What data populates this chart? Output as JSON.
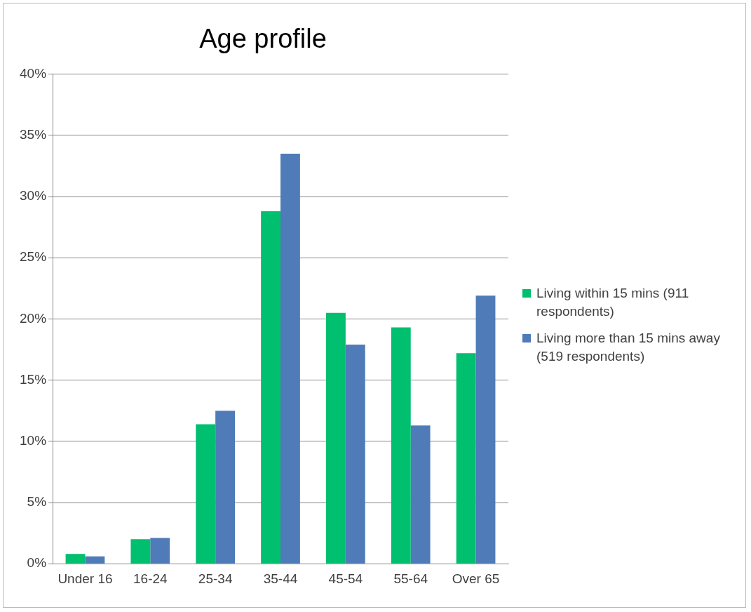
{
  "chart_data": {
    "type": "bar",
    "title": "Age profile",
    "categories": [
      "Under 16",
      "16-24",
      "25-34",
      "35-44",
      "45-54",
      "55-64",
      "Over 65"
    ],
    "series": [
      {
        "name": "Living within 15 mins (911 respondents)",
        "color": "#00bf6f",
        "values": [
          0.8,
          2.0,
          11.4,
          28.8,
          20.5,
          19.3,
          17.2
        ]
      },
      {
        "name": "Living more than 15 mins away (519 respondents)",
        "color": "#4f7bb8",
        "values": [
          0.6,
          2.1,
          12.5,
          33.5,
          17.9,
          11.3,
          21.9
        ]
      }
    ],
    "ylim": [
      0,
      40
    ],
    "yticks": [
      {
        "value": 0,
        "label": "0%"
      },
      {
        "value": 5,
        "label": "5%"
      },
      {
        "value": 10,
        "label": "10%"
      },
      {
        "value": 15,
        "label": "15%"
      },
      {
        "value": 20,
        "label": "20%"
      },
      {
        "value": 25,
        "label": "25%"
      },
      {
        "value": 30,
        "label": "30%"
      },
      {
        "value": 35,
        "label": "35%"
      },
      {
        "value": 40,
        "label": "40%"
      }
    ],
    "grid": "y",
    "legend": "right"
  }
}
